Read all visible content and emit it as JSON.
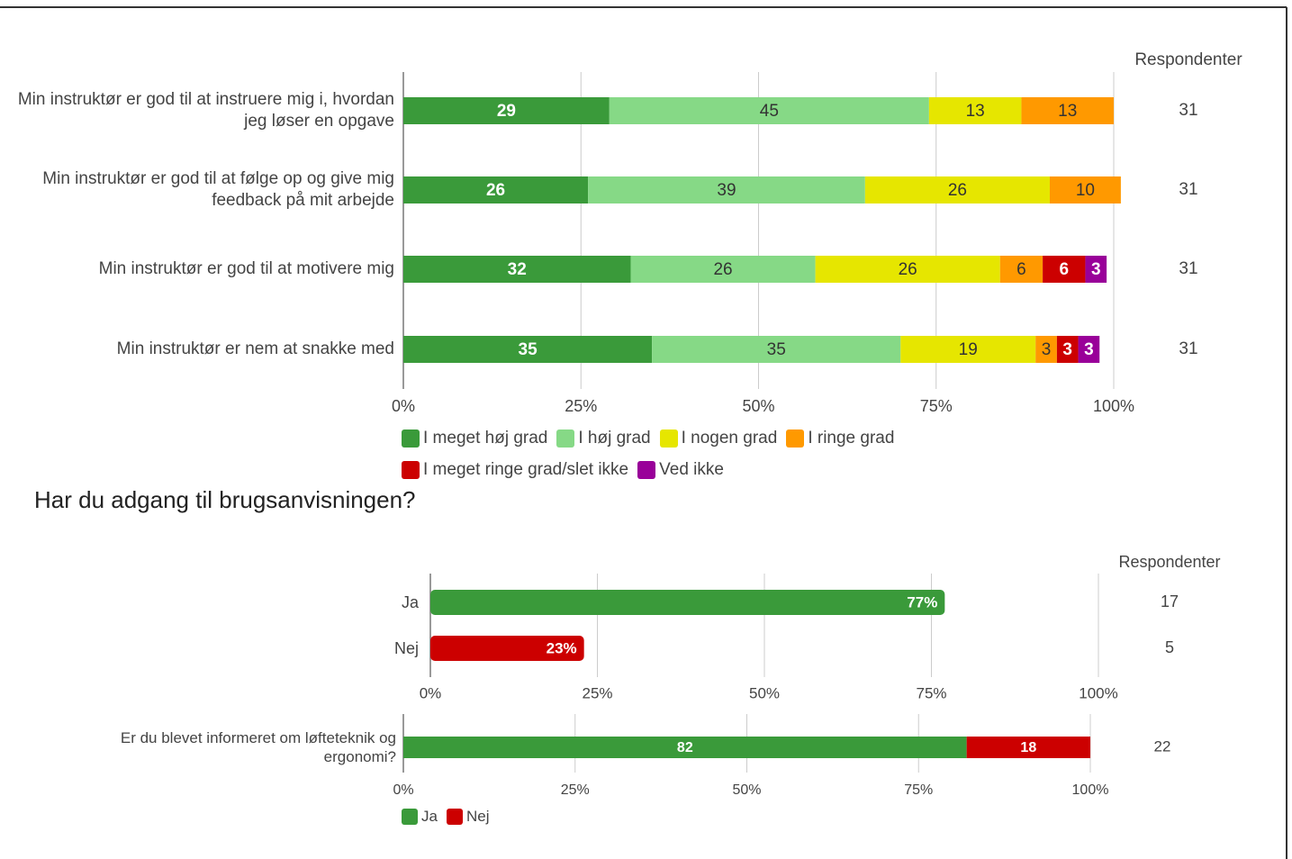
{
  "chart_data": [
    {
      "type": "stacked_bar",
      "categories": [
        "Min instruktør er god til at instruere mig i, hvordan jeg løser en opgave",
        "Min instruktør er god til at følge op og give mig feedback på mit arbejde",
        "Min instruktør er god til at motivere mig",
        "Min instruktør er nem at snakke med"
      ],
      "series": [
        {
          "name": "I meget høj grad",
          "color": "#3a9a3a",
          "label_color": "#ffffff",
          "values": [
            29,
            26,
            32,
            35
          ]
        },
        {
          "name": "I høj grad",
          "color": "#86d986",
          "label_color": "#333333",
          "values": [
            45,
            39,
            26,
            35
          ]
        },
        {
          "name": "I nogen grad",
          "color": "#e6e600",
          "label_color": "#333333",
          "values": [
            13,
            26,
            26,
            19
          ]
        },
        {
          "name": "I ringe grad",
          "color": "#ff9900",
          "label_color": "#333333",
          "values": [
            13,
            10,
            6,
            3
          ]
        },
        {
          "name": "I meget ringe grad/slet ikke",
          "color": "#cc0000",
          "label_color": "#ffffff",
          "values": [
            null,
            null,
            6,
            3
          ]
        },
        {
          "name": "Ved ikke",
          "color": "#990099",
          "label_color": "#ffffff",
          "values": [
            null,
            null,
            3,
            3
          ]
        }
      ],
      "xlim": [
        0,
        100
      ],
      "xticks": [
        {
          "value": 0,
          "label": "0%"
        },
        {
          "value": 25,
          "label": "25%"
        },
        {
          "value": 50,
          "label": "50%"
        },
        {
          "value": 75,
          "label": "75%"
        },
        {
          "value": 100,
          "label": "100%"
        }
      ],
      "grid": true,
      "respondents_label": "Respondenter",
      "respondents": [
        31,
        31,
        31,
        31
      ]
    },
    {
      "type": "bar",
      "title": "Har du adgang til brugsanvisningen?",
      "categories": [
        "Ja",
        "Nej"
      ],
      "values": [
        77,
        23
      ],
      "value_labels": [
        "77%",
        "23%"
      ],
      "colors": [
        "#3a9a3a",
        "#cc0000"
      ],
      "xlim": [
        0,
        100
      ],
      "xticks": [
        {
          "value": 0,
          "label": "0%"
        },
        {
          "value": 25,
          "label": "25%"
        },
        {
          "value": 50,
          "label": "50%"
        },
        {
          "value": 75,
          "label": "75%"
        },
        {
          "value": 100,
          "label": "100%"
        }
      ],
      "grid": true,
      "respondents_label": "Respondenter",
      "respondents": [
        17,
        5
      ]
    },
    {
      "type": "stacked_bar",
      "categories": [
        "Er du blevet informeret om løfteteknik og ergonomi?"
      ],
      "series": [
        {
          "name": "Ja",
          "color": "#3a9a3a",
          "label_color": "#ffffff",
          "values": [
            82
          ]
        },
        {
          "name": "Nej",
          "color": "#cc0000",
          "label_color": "#ffffff",
          "values": [
            18
          ]
        }
      ],
      "xlim": [
        0,
        100
      ],
      "xticks": [
        {
          "value": 0,
          "label": "0%"
        },
        {
          "value": 25,
          "label": "25%"
        },
        {
          "value": 50,
          "label": "50%"
        },
        {
          "value": 75,
          "label": "75%"
        },
        {
          "value": 100,
          "label": "100%"
        }
      ],
      "grid": true,
      "respondents": [
        22
      ]
    }
  ]
}
